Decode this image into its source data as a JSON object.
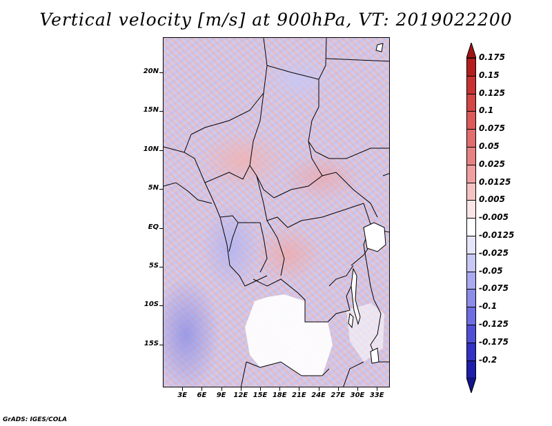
{
  "title": "Vertical velocity [m/s] at 900hPa, VT: 2019022200",
  "credit": "GrADS: IGES/COLA",
  "map": {
    "lon_range": [
      0,
      35
    ],
    "lat_range": [
      -20.5,
      24.5
    ],
    "y_ticks": [
      {
        "label": "20N",
        "lat": 20
      },
      {
        "label": "15N",
        "lat": 15
      },
      {
        "label": "10N",
        "lat": 10
      },
      {
        "label": "5N",
        "lat": 5
      },
      {
        "label": "EQ",
        "lat": 0
      },
      {
        "label": "5S",
        "lat": -5
      },
      {
        "label": "10S",
        "lat": -10
      },
      {
        "label": "15S",
        "lat": -15
      }
    ],
    "x_ticks": [
      {
        "label": "3E",
        "lon": 3
      },
      {
        "label": "6E",
        "lon": 6
      },
      {
        "label": "9E",
        "lon": 9
      },
      {
        "label": "12E",
        "lon": 12
      },
      {
        "label": "15E",
        "lon": 15
      },
      {
        "label": "18E",
        "lon": 18
      },
      {
        "label": "21E",
        "lon": 21
      },
      {
        "label": "24E",
        "lon": 24
      },
      {
        "label": "27E",
        "lon": 27
      },
      {
        "label": "30E",
        "lon": 30
      },
      {
        "label": "33E",
        "lon": 33
      }
    ]
  },
  "colorbar": {
    "levels": [
      {
        "label": "0.175",
        "color": "#b41e1e"
      },
      {
        "label": "0.15",
        "color": "#c83232"
      },
      {
        "label": "0.125",
        "color": "#d24646"
      },
      {
        "label": "0.1",
        "color": "#dc5a5a"
      },
      {
        "label": "0.075",
        "color": "#e16e6e"
      },
      {
        "label": "0.05",
        "color": "#e68282"
      },
      {
        "label": "0.025",
        "color": "#f0a0a0"
      },
      {
        "label": "0.0125",
        "color": "#f5c3c3"
      },
      {
        "label": "0.005",
        "color": "#fae6e6"
      },
      {
        "label": "-0.005",
        "color": "#ffffff"
      },
      {
        "label": "-0.0125",
        "color": "#e6e6fa"
      },
      {
        "label": "-0.025",
        "color": "#c8c8f5"
      },
      {
        "label": "-0.05",
        "color": "#aaaaf0"
      },
      {
        "label": "-0.075",
        "color": "#8c8ceb"
      },
      {
        "label": "-0.1",
        "color": "#6e6ee1"
      },
      {
        "label": "-0.125",
        "color": "#5050d7"
      },
      {
        "label": "-0.175",
        "color": "#3232c3"
      },
      {
        "label": "-0.2",
        "color": "#1e1eaa"
      }
    ],
    "top_color": "#a01414",
    "bottom_color": "#14148c"
  }
}
